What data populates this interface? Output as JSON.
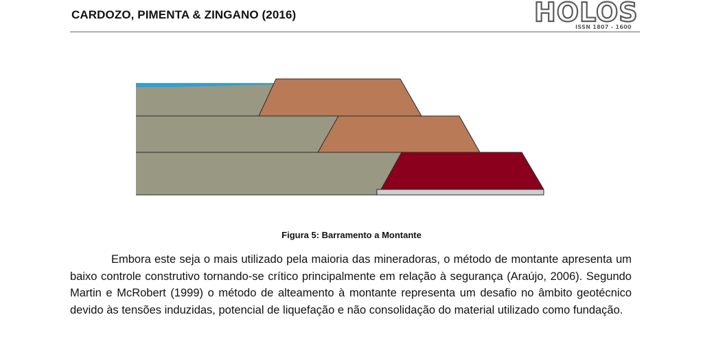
{
  "header": {
    "title": "CARDOZO, PIMENTA & ZINGANO (2016)",
    "logo": {
      "word": "HOLOS",
      "issn": "ISSN 1807 - 1600"
    }
  },
  "figure": {
    "caption": "Figura 5: Barramento a Montante",
    "colors": {
      "water": "#2f9fd8",
      "tailings": "#999883",
      "dike": "#b97a57",
      "starter_dam": "#8b001c",
      "foundation": "#cfcfcf",
      "outline": "#2a2a2a"
    }
  },
  "body": {
    "paragraph": "Embora este seja o mais utilizado pela maioria das mineradoras, o método de montante apresenta um baixo controle construtivo tornando-se crítico principalmente em relação à segurança (Araújo, 2006). Segundo Martin e McRobert (1999) o método de alteamento à montante representa um desafio no âmbito geotécnico devido às tensões induzidas, potencial de liquefação e não consolidação do material utilizado como fundação."
  }
}
